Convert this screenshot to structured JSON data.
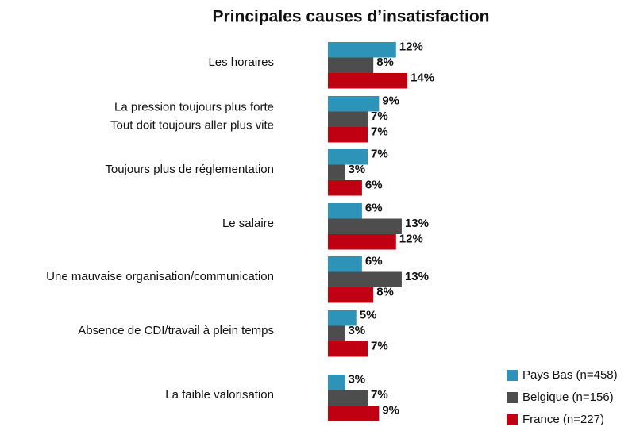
{
  "chart_data": {
    "type": "bar",
    "orientation": "horizontal",
    "title": "Principales causes d’insatisfaction",
    "categories": [
      [
        "Les horaires"
      ],
      [
        "La pression toujours plus forte",
        "Tout doit toujours aller plus vite"
      ],
      [
        "Toujours plus de réglementation"
      ],
      [
        "Le salaire"
      ],
      [
        "Une mauvaise organisation/communication"
      ],
      [
        "Absence de CDI/travail à plein temps"
      ],
      [
        "La faible valorisation"
      ]
    ],
    "series": [
      {
        "name": "Pays Bas  (n=458)",
        "color": "#2e93b8",
        "values": [
          12,
          9,
          7,
          6,
          6,
          5,
          3
        ],
        "value_labels": [
          "12%",
          "9%",
          "7%",
          "6%",
          "6%",
          "5%",
          "3%"
        ]
      },
      {
        "name": "Belgique  (n=156)",
        "color": "#4d4d4d",
        "values": [
          8,
          7,
          3,
          13,
          13,
          3,
          7
        ],
        "value_labels": [
          "8%",
          "7%",
          "3%",
          "13%",
          "13%",
          "3%",
          "7%"
        ]
      },
      {
        "name": "France  (n=227)",
        "color": "#c00012",
        "values": [
          14,
          7,
          6,
          12,
          8,
          7,
          9
        ],
        "value_labels": [
          "14%",
          "7%",
          "6%",
          "12%",
          "8%",
          "7%",
          "9%"
        ]
      }
    ],
    "legend": "bottom-right"
  }
}
